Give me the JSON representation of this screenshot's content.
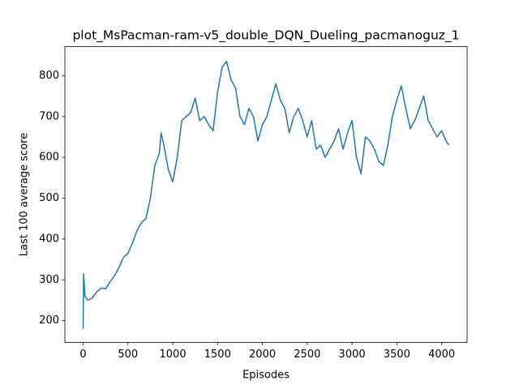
{
  "chart_data": {
    "type": "line",
    "title": "plot_MsPacman-ram-v5_double_DQN_Dueling_pacmanoguz_1",
    "xlabel": "Episodes",
    "ylabel": "Last 100 average score",
    "color": "#1f77b4",
    "x": [
      0,
      5,
      20,
      50,
      100,
      150,
      200,
      250,
      300,
      350,
      400,
      450,
      500,
      550,
      600,
      650,
      700,
      750,
      800,
      850,
      870,
      900,
      950,
      1000,
      1050,
      1100,
      1150,
      1200,
      1250,
      1300,
      1350,
      1400,
      1450,
      1500,
      1550,
      1600,
      1650,
      1700,
      1750,
      1800,
      1850,
      1900,
      1950,
      2000,
      2050,
      2100,
      2150,
      2200,
      2250,
      2300,
      2350,
      2400,
      2450,
      2500,
      2550,
      2600,
      2650,
      2700,
      2750,
      2800,
      2850,
      2900,
      2950,
      3000,
      3050,
      3100,
      3150,
      3200,
      3250,
      3300,
      3350,
      3400,
      3450,
      3500,
      3550,
      3600,
      3650,
      3700,
      3750,
      3800,
      3850,
      3900,
      3950,
      4000,
      4050,
      4080
    ],
    "values": [
      180,
      315,
      260,
      250,
      255,
      270,
      280,
      278,
      295,
      310,
      330,
      355,
      365,
      390,
      420,
      440,
      450,
      500,
      580,
      610,
      660,
      630,
      570,
      540,
      600,
      690,
      700,
      710,
      745,
      690,
      700,
      680,
      665,
      760,
      820,
      835,
      790,
      770,
      700,
      680,
      720,
      700,
      640,
      680,
      700,
      740,
      780,
      740,
      720,
      660,
      700,
      720,
      690,
      650,
      690,
      620,
      630,
      600,
      620,
      640,
      670,
      620,
      660,
      690,
      600,
      560,
      650,
      640,
      620,
      590,
      580,
      630,
      700,
      740,
      775,
      720,
      670,
      690,
      720,
      750,
      690,
      670,
      650,
      665,
      640,
      630
    ],
    "xlim": [
      -204,
      4284
    ],
    "ylim": [
      147,
      871
    ],
    "xticks": [
      0,
      500,
      1000,
      1500,
      2000,
      2500,
      3000,
      3500,
      4000
    ],
    "yticks": [
      200,
      300,
      400,
      500,
      600,
      700,
      800
    ],
    "grid": false
  }
}
